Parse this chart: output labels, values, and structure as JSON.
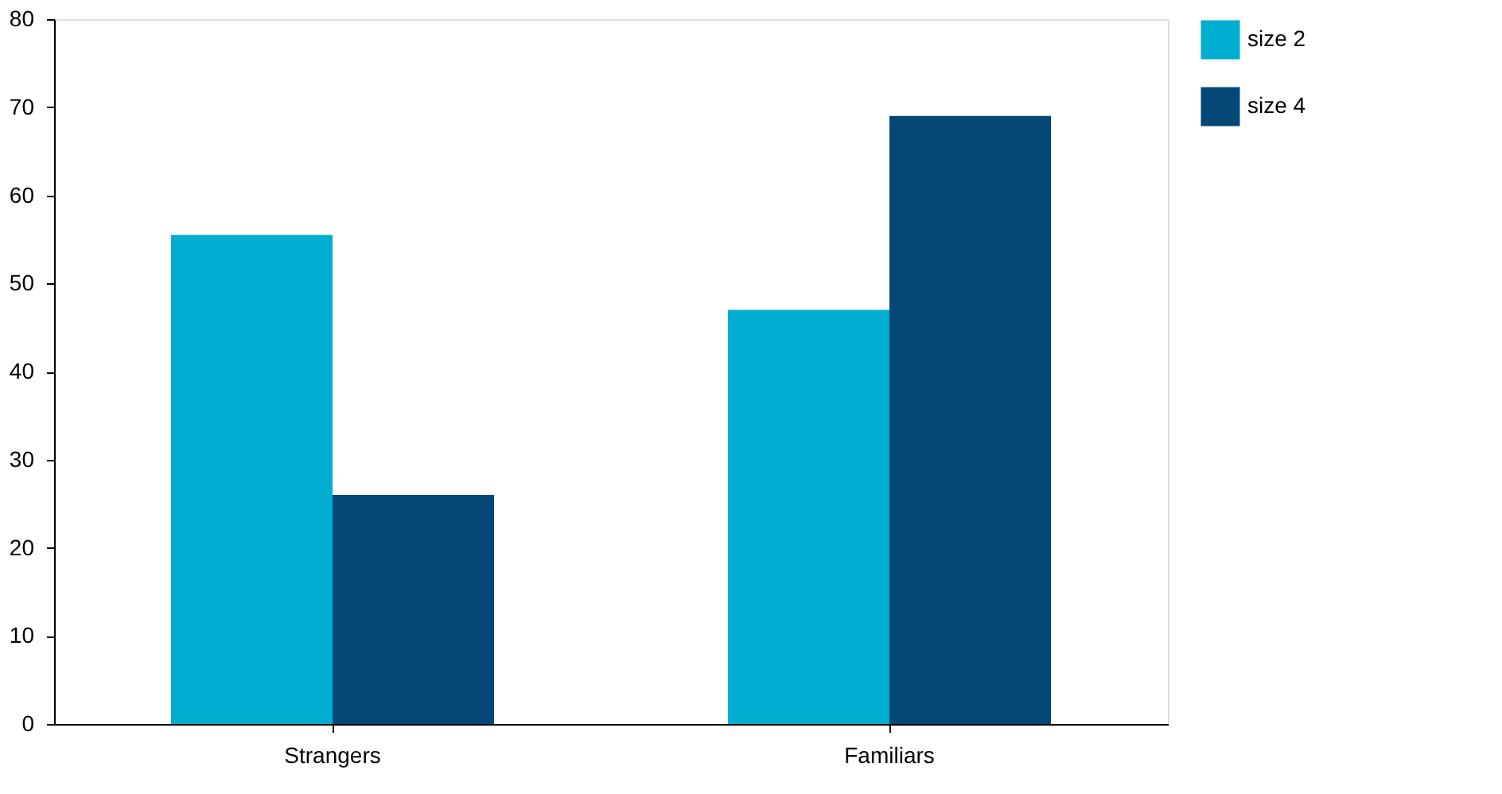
{
  "chart_data": {
    "type": "bar",
    "categories": [
      "Strangers",
      "Familiars"
    ],
    "series": [
      {
        "name": "size 2",
        "color": "#00aecf",
        "values": [
          55.5,
          47
        ]
      },
      {
        "name": "size 4",
        "color": "#054878",
        "values": [
          26,
          69
        ]
      }
    ],
    "ylim": [
      0,
      80
    ],
    "yticks": [
      0,
      10,
      20,
      30,
      40,
      50,
      60,
      70,
      80
    ],
    "grid": false,
    "legend": "right"
  }
}
